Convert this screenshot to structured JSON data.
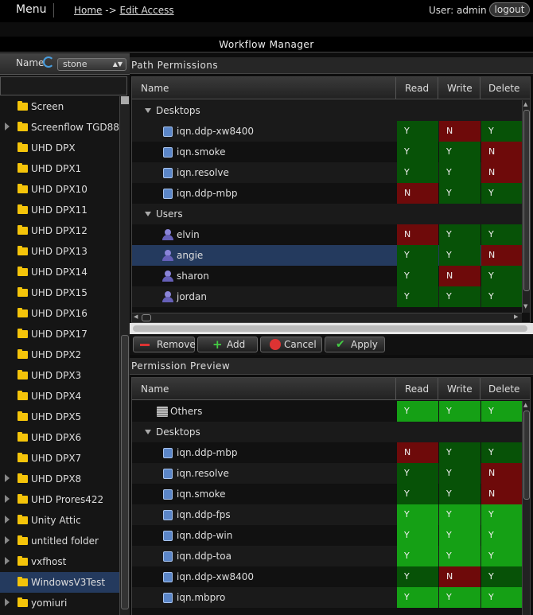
{
  "topbar": {
    "menu": "Menu",
    "home": "Home",
    "arrow": "->",
    "edit_access": "Edit Access",
    "user": "User: admin",
    "logout": "logout"
  },
  "title": "Workflow Manager",
  "left": {
    "name_label": "Name",
    "combo_value": "stone",
    "tree": [
      {
        "label": "Screen",
        "expandable": false
      },
      {
        "label": "Screenflow TGD88",
        "expandable": true
      },
      {
        "label": "UHD DPX",
        "expandable": false
      },
      {
        "label": "UHD DPX1",
        "expandable": false
      },
      {
        "label": "UHD DPX10",
        "expandable": false
      },
      {
        "label": "UHD DPX11",
        "expandable": false
      },
      {
        "label": "UHD DPX12",
        "expandable": false
      },
      {
        "label": "UHD DPX13",
        "expandable": false
      },
      {
        "label": "UHD DPX14",
        "expandable": false
      },
      {
        "label": "UHD DPX15",
        "expandable": false
      },
      {
        "label": "UHD DPX16",
        "expandable": false
      },
      {
        "label": "UHD DPX17",
        "expandable": false
      },
      {
        "label": "UHD DPX2",
        "expandable": false
      },
      {
        "label": "UHD DPX3",
        "expandable": false
      },
      {
        "label": "UHD DPX4",
        "expandable": false
      },
      {
        "label": "UHD DPX5",
        "expandable": false
      },
      {
        "label": "UHD DPX6",
        "expandable": false
      },
      {
        "label": "UHD DPX7",
        "expandable": false
      },
      {
        "label": "UHD DPX8",
        "expandable": true
      },
      {
        "label": "UHD Prores422",
        "expandable": true
      },
      {
        "label": "Unity Attic",
        "expandable": true
      },
      {
        "label": "untitled folder",
        "expandable": true
      },
      {
        "label": "vxfhost",
        "expandable": true
      },
      {
        "label": "WindowsV3Test",
        "expandable": false,
        "selected": true
      },
      {
        "label": "yomiuri",
        "expandable": true
      }
    ]
  },
  "path_permissions": {
    "title": "Path Permissions",
    "columns": {
      "name": "Name",
      "read": "Read",
      "write": "Write",
      "delete": "Delete"
    },
    "rows": [
      {
        "type": "group",
        "label": "Desktops"
      },
      {
        "type": "storage",
        "label": "iqn.ddp-xw8400",
        "read": "Y",
        "write": "N",
        "delete": "Y"
      },
      {
        "type": "storage",
        "label": "iqn.smoke",
        "read": "Y",
        "write": "Y",
        "delete": "N"
      },
      {
        "type": "storage",
        "label": "iqn.resolve",
        "read": "Y",
        "write": "Y",
        "delete": "N"
      },
      {
        "type": "storage",
        "label": "iqn.ddp-mbp",
        "read": "N",
        "write": "Y",
        "delete": "Y"
      },
      {
        "type": "group",
        "label": "Users"
      },
      {
        "type": "user",
        "label": "elvin",
        "read": "N",
        "write": "Y",
        "delete": "Y"
      },
      {
        "type": "user",
        "label": "angie",
        "read": "Y",
        "write": "Y",
        "delete": "N",
        "selected": true
      },
      {
        "type": "user",
        "label": "sharon",
        "read": "Y",
        "write": "N",
        "delete": "Y"
      },
      {
        "type": "user",
        "label": "jordan",
        "read": "Y",
        "write": "Y",
        "delete": "Y"
      }
    ]
  },
  "buttons": {
    "remove": "Remove",
    "add": "Add",
    "cancel": "Cancel",
    "apply": "Apply"
  },
  "permission_preview": {
    "title": "Permission Preview",
    "columns": {
      "name": "Name",
      "read": "Read",
      "write": "Write",
      "delete": "Delete"
    },
    "rows": [
      {
        "type": "others",
        "label": "Others",
        "read": "Y",
        "write": "Y",
        "delete": "Y",
        "bright": true
      },
      {
        "type": "group",
        "label": "Desktops"
      },
      {
        "type": "storage",
        "label": "iqn.ddp-mbp",
        "read": "N",
        "write": "Y",
        "delete": "Y"
      },
      {
        "type": "storage",
        "label": "iqn.resolve",
        "read": "Y",
        "write": "Y",
        "delete": "N"
      },
      {
        "type": "storage",
        "label": "iqn.smoke",
        "read": "Y",
        "write": "Y",
        "delete": "N"
      },
      {
        "type": "storage",
        "label": "iqn.ddp-fps",
        "read": "Y",
        "write": "Y",
        "delete": "Y",
        "bright": true
      },
      {
        "type": "storage",
        "label": "iqn.ddp-win",
        "read": "Y",
        "write": "Y",
        "delete": "Y",
        "bright": true
      },
      {
        "type": "storage",
        "label": "iqn.ddp-toa",
        "read": "Y",
        "write": "Y",
        "delete": "Y",
        "bright": true
      },
      {
        "type": "storage",
        "label": "iqn.ddp-xw8400",
        "read": "Y",
        "write": "N",
        "delete": "Y"
      },
      {
        "type": "storage",
        "label": "iqn.mbpro",
        "read": "Y",
        "write": "Y",
        "delete": "Y",
        "bright": true
      }
    ]
  },
  "colors": {
    "yes": "#075207",
    "no": "#6e0a0a",
    "yes_bright": "#15a015",
    "selected": "#243a5e"
  }
}
